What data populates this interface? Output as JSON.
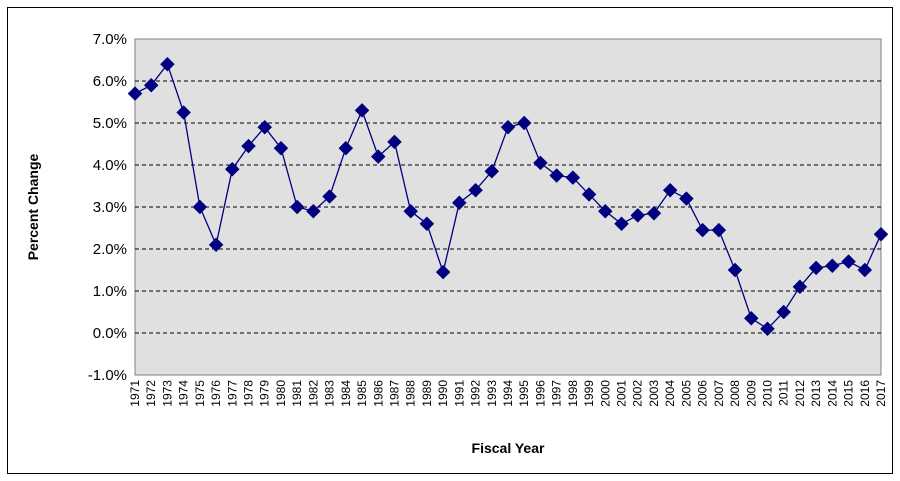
{
  "chart_data": {
    "type": "line",
    "title": "",
    "xlabel": "Fiscal Year",
    "ylabel": "Percent Change",
    "ylim": [
      -1.0,
      7.0
    ],
    "y_ticks": [
      -1.0,
      0.0,
      1.0,
      2.0,
      3.0,
      4.0,
      5.0,
      6.0,
      7.0
    ],
    "y_tick_labels": [
      "-1.0%",
      "0.0%",
      "1.0%",
      "2.0%",
      "3.0%",
      "4.0%",
      "5.0%",
      "6.0%",
      "7.0%"
    ],
    "grid": "horizontal dashed",
    "legend": "none",
    "series_color": "#000080",
    "plot_background": "#e0e0e0",
    "categories": [
      "1971",
      "1972",
      "1973",
      "1974",
      "1975",
      "1976",
      "1977",
      "1978",
      "1979",
      "1980",
      "1981",
      "1982",
      "1983",
      "1984",
      "1985",
      "1986",
      "1987",
      "1988",
      "1989",
      "1990",
      "1991",
      "1992",
      "1993",
      "1994",
      "1995",
      "1996",
      "1997",
      "1998",
      "1999",
      "2000",
      "2001",
      "2002",
      "2003",
      "2004",
      "2005",
      "2006",
      "2007",
      "2008",
      "2009",
      "2010",
      "2011",
      "2012",
      "2013",
      "2014",
      "2015",
      "2016",
      "2017"
    ],
    "series": [
      {
        "values": [
          5.7,
          5.9,
          6.4,
          5.25,
          3.0,
          2.1,
          3.9,
          4.45,
          4.9,
          4.4,
          3.0,
          2.9,
          3.25,
          4.4,
          5.3,
          4.2,
          4.55,
          2.9,
          2.6,
          1.45,
          3.1,
          3.4,
          3.85,
          4.9,
          5.0,
          4.05,
          3.75,
          3.7,
          3.3,
          2.9,
          2.6,
          2.8,
          2.85,
          3.4,
          3.2,
          2.45,
          2.45,
          1.5,
          0.35,
          0.1,
          0.5,
          1.1,
          1.55,
          1.6,
          1.7,
          1.5,
          2.35
        ]
      }
    ]
  }
}
